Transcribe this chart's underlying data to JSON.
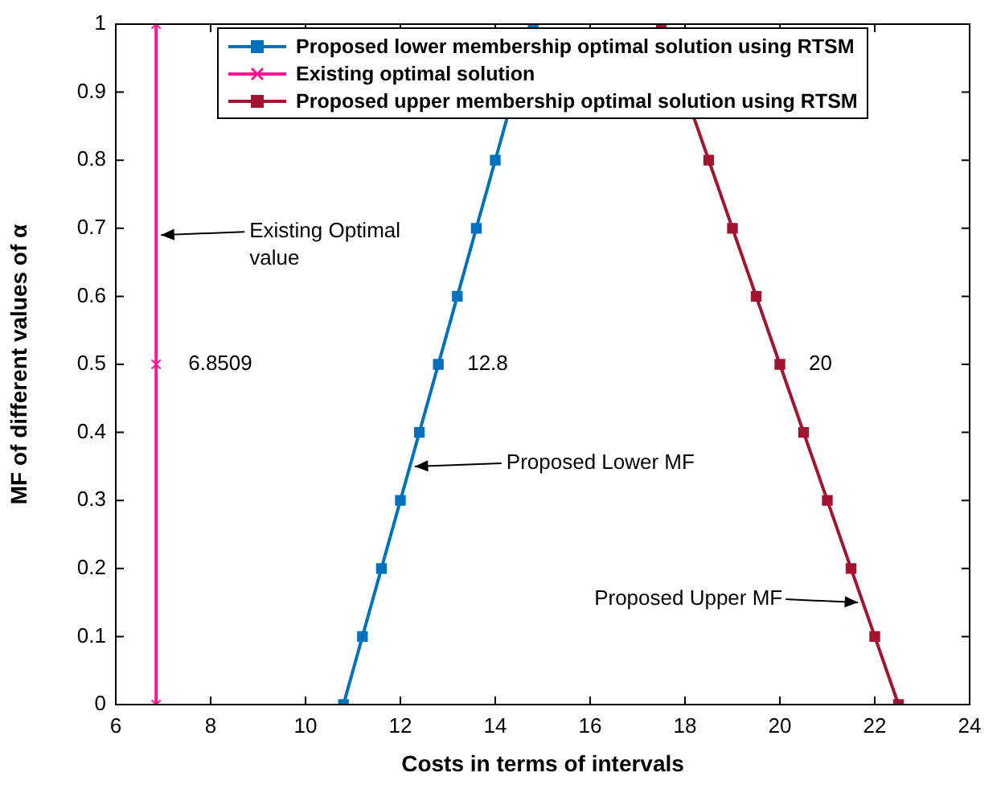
{
  "chart_data": {
    "type": "line",
    "xlabel": "Costs in terms of intervals",
    "ylabel": "MF of different values of α",
    "xlim": [
      6,
      24
    ],
    "xticks": [
      6,
      8,
      10,
      12,
      14,
      16,
      18,
      20,
      22,
      24
    ],
    "ylim": [
      0,
      1
    ],
    "yticks": [
      0,
      0.1,
      0.2,
      0.3,
      0.4,
      0.5,
      0.6,
      0.7,
      0.8,
      0.9,
      1
    ],
    "grid": false,
    "legend": "top",
    "line_style": "solid",
    "series": [
      {
        "name": "Proposed lower membership optimal solution using RTSM",
        "color": "#0072bd",
        "marker": "square",
        "x": [
          10.8,
          11.2,
          11.6,
          12.0,
          12.4,
          12.8,
          13.2,
          13.6,
          14.0,
          14.4,
          14.8
        ],
        "values": [
          0,
          0.1,
          0.2,
          0.3,
          0.4,
          0.5,
          0.6,
          0.7,
          0.8,
          null,
          1
        ]
      },
      {
        "name": "Existing optimal solution",
        "color": "#ff1493",
        "marker": "cross",
        "x": [
          6.8509,
          6.8509,
          6.8509
        ],
        "values": [
          0,
          0.5,
          1
        ]
      },
      {
        "name": "Proposed upper membership optimal solution using RTSM",
        "color": "#a2142f",
        "marker": "square",
        "x": [
          22.5,
          22.0,
          21.5,
          21.0,
          20.5,
          20.0,
          19.5,
          19.0,
          18.5,
          18.0,
          17.5
        ],
        "values": [
          0,
          0.1,
          0.2,
          0.3,
          0.4,
          0.5,
          0.6,
          0.7,
          0.8,
          null,
          1
        ]
      }
    ],
    "annotations": [
      {
        "text": "Existing Optimal value",
        "x": 6.8509,
        "y": 0.69
      },
      {
        "text": "6.8509",
        "x": 6.8509,
        "y": 0.5
      },
      {
        "text": "12.8",
        "x": 12.8,
        "y": 0.5
      },
      {
        "text": "20",
        "x": 20,
        "y": 0.5
      },
      {
        "text": "Proposed Lower MF",
        "x": 12.2,
        "y": 0.35
      },
      {
        "text": "Proposed Upper MF",
        "x": 21.75,
        "y": 0.15
      }
    ]
  }
}
